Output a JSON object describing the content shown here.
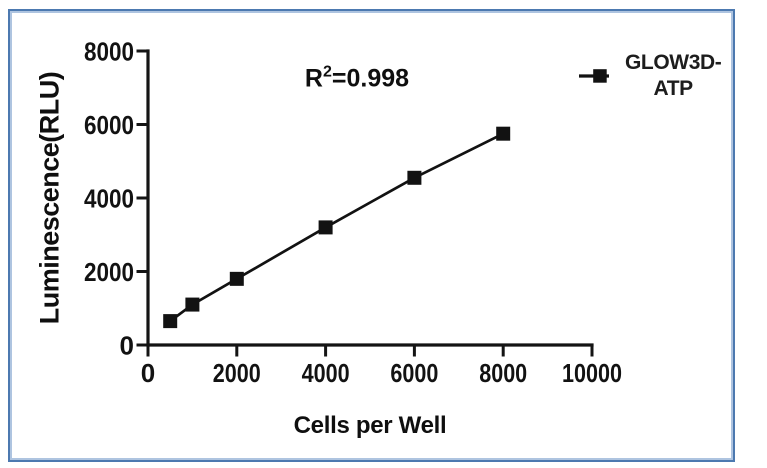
{
  "colors": {
    "background": "#ffffff",
    "frame_border": "#4c79b0",
    "frame_border_inner": "#aec4e0",
    "axis": "#141414",
    "text": "#121212",
    "series": "#121212"
  },
  "chart_data": {
    "type": "line",
    "title": "",
    "xlabel": "Cells per Well",
    "ylabel": "Luminescence(RLU)",
    "xlim": [
      0,
      10000
    ],
    "ylim": [
      0,
      8000
    ],
    "x_ticks": [
      0,
      2000,
      4000,
      6000,
      8000,
      10000
    ],
    "x_tick_labels": [
      "0",
      "2000",
      "4000",
      "6000",
      "8000",
      "10000"
    ],
    "y_ticks": [
      0,
      2000,
      4000,
      6000,
      8000
    ],
    "y_tick_labels": [
      "0",
      "2000",
      "4000",
      "6000",
      "8000"
    ],
    "grid": false,
    "legend_position": "outside-upper-right",
    "annotation": {
      "prefix": "R",
      "sup": "2",
      "suffix": "=0.998",
      "full_text": "R2=0.998"
    },
    "series": [
      {
        "name": "GLOW3D-ATP",
        "legend_lines": [
          "GLOW3D-",
          "ATP"
        ],
        "marker": "filled-square",
        "color": "#121212",
        "x": [
          500,
          1000,
          2000,
          4000,
          6000,
          8000
        ],
        "y": [
          650,
          1100,
          1800,
          3200,
          4550,
          5750
        ]
      }
    ]
  }
}
